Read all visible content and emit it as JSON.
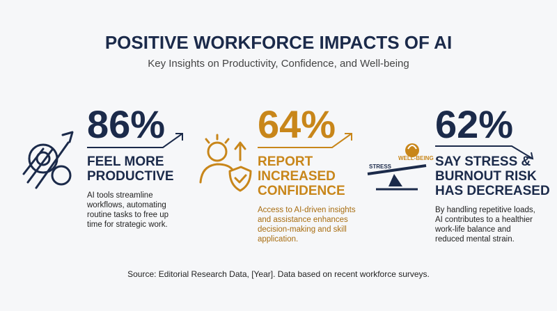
{
  "header": {
    "title": "POSITIVE WORKFORCE IMPACTS OF AI",
    "subtitle": "Key Insights on Productivity, Confidence, and Well-being"
  },
  "stats": [
    {
      "value": "86%",
      "heading": [
        "FEEL MORE",
        "PRODUCTIVE"
      ],
      "body": [
        "AI tools streamline",
        "workflows, automating",
        "routine tasks to free up",
        "time for strategic work."
      ]
    },
    {
      "value": "64%",
      "heading": [
        "REPORT",
        "INCREASED",
        "CONFIDENCE"
      ],
      "body": [
        "Access to AI-driven insights",
        "and assistance enhances",
        "decision-making and skill",
        "application."
      ]
    },
    {
      "value": "62%",
      "heading": [
        "SAY STRESS &",
        "BURNOUT RISK",
        "HAS DECREASED"
      ],
      "body": [
        "By handling repetitive loads,",
        "AI contributes to a healthier",
        "work-life balance and",
        "reduced mental strain."
      ]
    }
  ],
  "icon_labels": {
    "stress": "STRESS",
    "wellbeing": "WELL-BEING"
  },
  "footer": {
    "source": "Source: Editorial Research Data, [Year]. Data based on recent workforce surveys."
  }
}
